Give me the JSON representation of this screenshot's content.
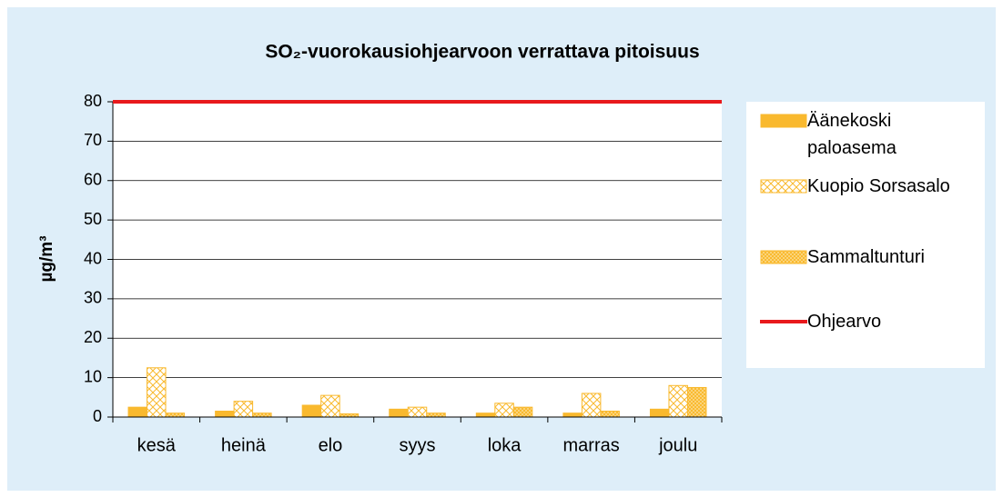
{
  "chart_data": {
    "type": "bar",
    "title": "SO₂-vuorokausiohjearvoon verrattava pitoisuus",
    "ylabel": "µg/m³",
    "categories": [
      "kesä",
      "heinä",
      "elo",
      "syys",
      "loka",
      "marras",
      "joulu"
    ],
    "series": [
      {
        "name": "Äänekoski paloasema",
        "color": "#f9b92e",
        "pattern": "solid",
        "values": [
          2.5,
          1.5,
          3,
          2,
          1,
          1,
          2
        ]
      },
      {
        "name": "Kuopio Sorsasalo",
        "color": "#f9b92e",
        "pattern": "crosshatch",
        "values": [
          12.5,
          4,
          5.5,
          2.5,
          3.5,
          6,
          8
        ]
      },
      {
        "name": "Sammaltunturi",
        "color": "#f9b92e",
        "pattern": "dense",
        "values": [
          1,
          1,
          0.8,
          1,
          2.5,
          1.5,
          7.5
        ]
      }
    ],
    "reference_line": {
      "name": "Ohjearvo",
      "value": 80,
      "color": "#e8191c"
    },
    "ylim": [
      0,
      80
    ],
    "yticks": [
      0,
      10,
      20,
      30,
      40,
      50,
      60,
      70,
      80
    ],
    "grid": true
  }
}
